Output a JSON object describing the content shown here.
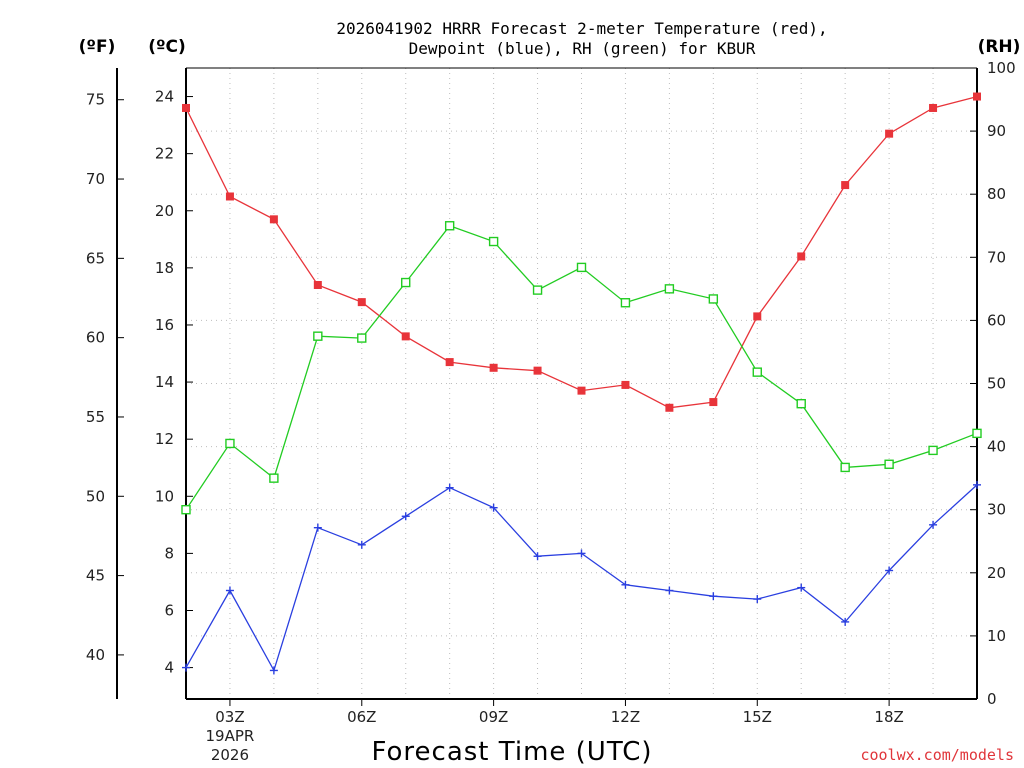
{
  "chart_data": {
    "type": "line",
    "title_line1": "2026041902 HRRR Forecast 2-meter Temperature (red),",
    "title_line2": "Dewpoint (blue), RH (green) for KBUR",
    "xlabel": "Forecast Time (UTC)",
    "credit": "coolwx.com/models",
    "unit_f": "(ºF)",
    "unit_c": "(ºC)",
    "unit_rh": "(RH)",
    "x_hours": [
      2,
      3,
      4,
      5,
      6,
      7,
      8,
      9,
      10,
      11,
      12,
      13,
      14,
      15,
      16,
      17,
      18,
      19,
      20
    ],
    "xlim": [
      2,
      20
    ],
    "x_ticks": [
      {
        "hour": 3,
        "label": "03Z",
        "label2": "19APR",
        "label3": "2026"
      },
      {
        "hour": 6,
        "label": "06Z"
      },
      {
        "hour": 9,
        "label": "09Z"
      },
      {
        "hour": 12,
        "label": "12Z"
      },
      {
        "hour": 15,
        "label": "15Z"
      },
      {
        "hour": 18,
        "label": "18Z"
      }
    ],
    "y_celsius": {
      "lim": [
        2.9,
        25.0
      ],
      "ticks": [
        4,
        6,
        8,
        10,
        12,
        14,
        16,
        18,
        20,
        22,
        24
      ]
    },
    "y_fahrenheit": {
      "ticks": [
        40,
        45,
        50,
        55,
        60,
        65,
        70,
        75
      ]
    },
    "y_rh": {
      "lim": [
        0,
        100
      ],
      "ticks": [
        0,
        10,
        20,
        30,
        40,
        50,
        60,
        70,
        80,
        90,
        100
      ]
    },
    "grid": true,
    "series": [
      {
        "name": "Temperature",
        "axis": "celsius",
        "color": "#e8343a",
        "marker": "filled-square",
        "values": [
          23.6,
          20.5,
          19.7,
          17.4,
          16.8,
          15.6,
          14.7,
          14.5,
          14.4,
          13.7,
          13.9,
          13.1,
          13.3,
          16.3,
          18.4,
          20.9,
          22.7,
          23.6,
          24.0
        ]
      },
      {
        "name": "Dewpoint",
        "axis": "celsius",
        "color": "#2a3fe0",
        "marker": "plus",
        "values": [
          4.0,
          6.7,
          3.9,
          8.9,
          8.3,
          9.3,
          10.3,
          9.6,
          7.9,
          8.0,
          6.9,
          6.7,
          6.5,
          6.4,
          6.8,
          5.6,
          7.4,
          9.0,
          10.4
        ]
      },
      {
        "name": "Relative Humidity",
        "axis": "rh",
        "color": "#22cc22",
        "marker": "open-square",
        "values": [
          30,
          40.5,
          35,
          57.5,
          57.2,
          66,
          75,
          72.5,
          64.8,
          68.4,
          62.8,
          65,
          63.4,
          51.8,
          46.8,
          36.7,
          37.2,
          39.4,
          42.1
        ]
      }
    ]
  }
}
